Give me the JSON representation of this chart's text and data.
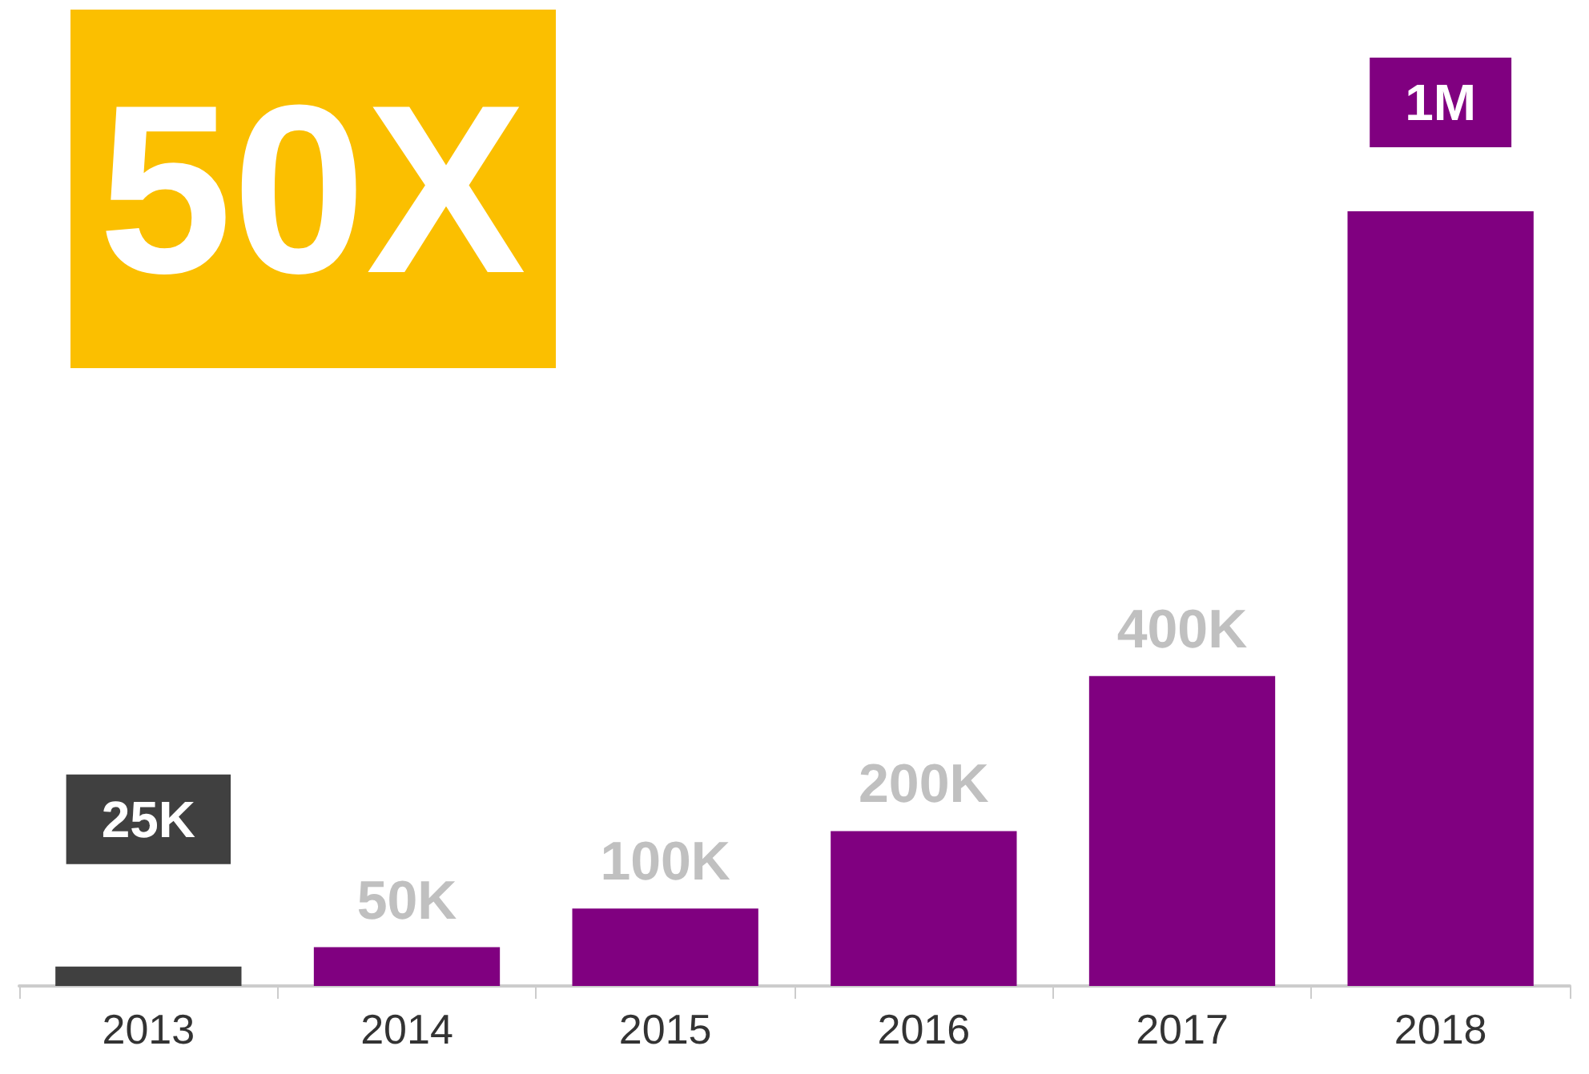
{
  "chart_data": {
    "type": "bar",
    "categories": [
      "2013",
      "2014",
      "2015",
      "2016",
      "2017",
      "2018"
    ],
    "values": [
      25000,
      50000,
      100000,
      200000,
      400000,
      1000000
    ],
    "colors": [
      "#404040",
      "#800080",
      "#800080",
      "#800080",
      "#800080",
      "#800080"
    ],
    "value_labels": [
      "25K",
      "50K",
      "100K",
      "200K",
      "400K",
      "1M"
    ],
    "annotations": [
      "50X"
    ]
  }
}
